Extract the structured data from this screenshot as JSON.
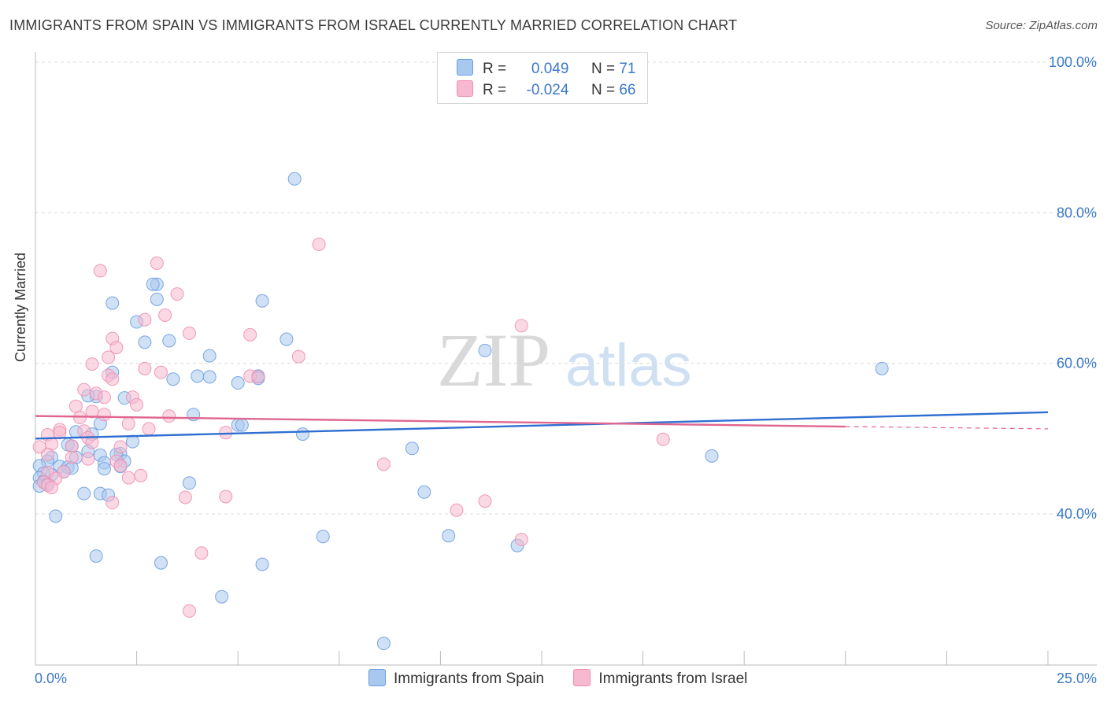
{
  "title": "IMMIGRANTS FROM SPAIN VS IMMIGRANTS FROM ISRAEL CURRENTLY MARRIED CORRELATION CHART",
  "source": "Source: ZipAtlas.com",
  "watermark": {
    "zip": "ZIP",
    "atlas": "atlas"
  },
  "legend_top": {
    "rows": [
      {
        "r_label": "R =",
        "r_value": "0.049",
        "n_label": "N =",
        "n_value": "71",
        "color": "#a9c8ef"
      },
      {
        "r_label": "R =",
        "r_value": "-0.024",
        "n_label": "N =",
        "n_value": "66",
        "color": "#f6b9cf"
      }
    ]
  },
  "legend_bottom": [
    {
      "label": "Immigrants from Spain",
      "color": "#a9c8ef"
    },
    {
      "label": "Immigrants from Israel",
      "color": "#f6b9cf"
    }
  ],
  "chart_data": {
    "type": "scatter",
    "xlabel": "",
    "ylabel": "Currently Married",
    "xlim": [
      0,
      25
    ],
    "ylim": [
      20,
      102
    ],
    "x_tick_labels": [
      "0.0%",
      "25.0%"
    ],
    "y_ticks": [
      40,
      60,
      80,
      100
    ],
    "y_tick_labels": [
      "40.0%",
      "60.0%",
      "80.0%",
      "100.0%"
    ],
    "grid": true,
    "series": [
      {
        "name": "Immigrants from Spain",
        "color": "#6a9ee0",
        "fill": "#a9c8ef",
        "line_color": "#2f6fd1",
        "trend": [
          [
            0,
            50.0
          ],
          [
            25,
            53.5
          ]
        ],
        "points": [
          [
            6.4,
            84.5
          ],
          [
            3.0,
            70.5
          ],
          [
            2.9,
            70.5
          ],
          [
            5.6,
            68.3
          ],
          [
            1.9,
            68.0
          ],
          [
            3.0,
            68.5
          ],
          [
            2.5,
            65.5
          ],
          [
            3.3,
            63.0
          ],
          [
            2.7,
            62.8
          ],
          [
            6.2,
            63.2
          ],
          [
            4.3,
            61.0
          ],
          [
            11.1,
            61.7
          ],
          [
            20.9,
            59.3
          ],
          [
            1.9,
            58.8
          ],
          [
            3.4,
            57.9
          ],
          [
            4.0,
            58.3
          ],
          [
            4.3,
            58.2
          ],
          [
            5.5,
            58.3
          ],
          [
            5.5,
            58.0
          ],
          [
            5.0,
            57.4
          ],
          [
            1.5,
            55.6
          ],
          [
            2.2,
            55.4
          ],
          [
            1.3,
            55.7
          ],
          [
            1.6,
            52.0
          ],
          [
            3.9,
            53.2
          ],
          [
            5.0,
            51.8
          ],
          [
            5.1,
            51.8
          ],
          [
            6.6,
            50.6
          ],
          [
            1.0,
            50.9
          ],
          [
            1.4,
            50.6
          ],
          [
            2.4,
            49.6
          ],
          [
            0.8,
            49.2
          ],
          [
            0.9,
            49.0
          ],
          [
            1.3,
            48.3
          ],
          [
            2.1,
            48.0
          ],
          [
            2.0,
            47.9
          ],
          [
            1.6,
            47.8
          ],
          [
            9.3,
            48.7
          ],
          [
            16.7,
            47.7
          ],
          [
            0.4,
            47.5
          ],
          [
            0.3,
            47.0
          ],
          [
            1.0,
            47.5
          ],
          [
            2.2,
            47.0
          ],
          [
            1.7,
            46.8
          ],
          [
            0.6,
            46.3
          ],
          [
            0.8,
            46.2
          ],
          [
            0.9,
            46.1
          ],
          [
            2.1,
            46.3
          ],
          [
            1.7,
            46.0
          ],
          [
            0.1,
            46.4
          ],
          [
            0.7,
            45.6
          ],
          [
            0.4,
            45.2
          ],
          [
            0.2,
            45.4
          ],
          [
            0.1,
            44.8
          ],
          [
            0.2,
            44.3
          ],
          [
            0.3,
            44.0
          ],
          [
            0.1,
            43.7
          ],
          [
            3.8,
            44.1
          ],
          [
            1.6,
            42.7
          ],
          [
            1.8,
            42.5
          ],
          [
            1.2,
            42.7
          ],
          [
            9.6,
            42.9
          ],
          [
            0.5,
            39.7
          ],
          [
            7.1,
            37.0
          ],
          [
            10.2,
            37.1
          ],
          [
            11.9,
            35.8
          ],
          [
            1.5,
            34.4
          ],
          [
            3.1,
            33.5
          ],
          [
            5.6,
            33.3
          ],
          [
            4.6,
            29.0
          ],
          [
            8.6,
            22.8
          ]
        ]
      },
      {
        "name": "Immigrants from Israel",
        "color": "#ee8fb1",
        "fill": "#f6b9cf",
        "line_color": "#e0668f",
        "trend": [
          [
            0,
            53.0
          ],
          [
            20,
            51.6
          ]
        ],
        "trend_dashed": [
          [
            20,
            51.6
          ],
          [
            25,
            51.3
          ]
        ],
        "points": [
          [
            7.0,
            75.8
          ],
          [
            3.0,
            73.3
          ],
          [
            1.6,
            72.3
          ],
          [
            3.5,
            69.2
          ],
          [
            3.2,
            66.4
          ],
          [
            2.7,
            65.8
          ],
          [
            12.0,
            65.0
          ],
          [
            3.8,
            64.0
          ],
          [
            5.3,
            63.8
          ],
          [
            1.9,
            63.3
          ],
          [
            2.0,
            62.1
          ],
          [
            1.8,
            60.8
          ],
          [
            6.5,
            60.9
          ],
          [
            1.4,
            59.9
          ],
          [
            2.7,
            59.3
          ],
          [
            3.1,
            58.8
          ],
          [
            5.3,
            58.3
          ],
          [
            5.5,
            58.2
          ],
          [
            1.8,
            58.4
          ],
          [
            1.9,
            57.9
          ],
          [
            1.2,
            56.5
          ],
          [
            1.5,
            56.0
          ],
          [
            1.7,
            55.5
          ],
          [
            2.4,
            55.5
          ],
          [
            2.5,
            54.5
          ],
          [
            1.0,
            54.3
          ],
          [
            1.4,
            53.6
          ],
          [
            1.7,
            53.2
          ],
          [
            1.1,
            52.8
          ],
          [
            3.3,
            53.0
          ],
          [
            2.3,
            52.0
          ],
          [
            2.8,
            51.3
          ],
          [
            0.6,
            51.2
          ],
          [
            0.3,
            50.5
          ],
          [
            1.2,
            51.0
          ],
          [
            0.6,
            50.8
          ],
          [
            4.7,
            50.8
          ],
          [
            1.3,
            50.1
          ],
          [
            15.5,
            49.9
          ],
          [
            0.4,
            49.3
          ],
          [
            1.4,
            49.5
          ],
          [
            0.9,
            49.0
          ],
          [
            2.1,
            48.9
          ],
          [
            0.3,
            47.9
          ],
          [
            0.9,
            47.5
          ],
          [
            1.3,
            47.3
          ],
          [
            2.0,
            47.0
          ],
          [
            8.6,
            46.6
          ],
          [
            2.1,
            46.4
          ],
          [
            0.7,
            45.6
          ],
          [
            0.3,
            45.5
          ],
          [
            2.6,
            45.1
          ],
          [
            2.3,
            44.8
          ],
          [
            0.5,
            44.7
          ],
          [
            0.2,
            44.2
          ],
          [
            0.3,
            43.8
          ],
          [
            0.4,
            43.5
          ],
          [
            1.9,
            41.5
          ],
          [
            3.7,
            42.2
          ],
          [
            4.7,
            42.3
          ],
          [
            11.1,
            41.7
          ],
          [
            10.4,
            40.5
          ],
          [
            12.0,
            36.6
          ],
          [
            4.1,
            34.8
          ],
          [
            3.8,
            27.1
          ],
          [
            0.1,
            48.9
          ]
        ]
      }
    ]
  }
}
